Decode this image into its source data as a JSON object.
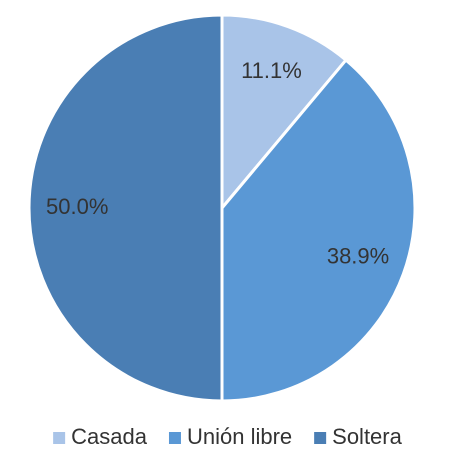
{
  "chart_data": {
    "type": "pie",
    "categories": [
      "Casada",
      "Unión libre",
      "Soltera"
    ],
    "values": [
      11.1,
      38.9,
      50.0
    ],
    "value_labels": [
      "11.1%",
      "38.9%",
      "50.0%"
    ],
    "colors": [
      "#a9c4e8",
      "#5a98d5",
      "#4a7eb4"
    ],
    "legend": "bottom"
  }
}
